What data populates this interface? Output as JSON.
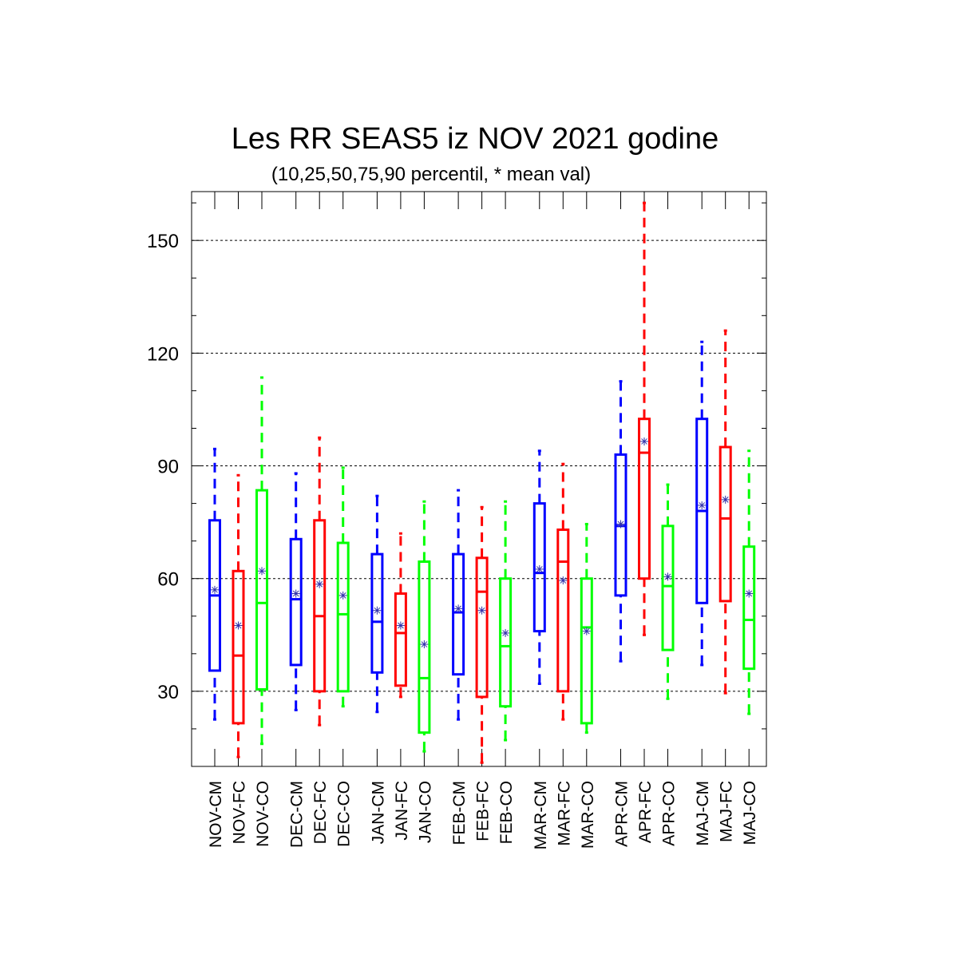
{
  "chart_data": {
    "type": "box",
    "title": "Les RR SEAS5 iz NOV 2021 godine",
    "subtitle": "(10,25,50,75,90 percentil, * mean val)",
    "xlabel": "",
    "ylabel": "",
    "ylim": [
      10,
      163
    ],
    "yticks": [
      30,
      60,
      90,
      120,
      150
    ],
    "grid": "horizontal dashed at major ticks",
    "legend": "none",
    "colors": {
      "CM": "#0000ff",
      "FC": "#ff0000",
      "CO": "#00ff00"
    },
    "boxes": [
      {
        "label": "NOV-CM",
        "group": 0,
        "kind": "CM",
        "p10": 22.5,
        "p25": 35.5,
        "median": 55.5,
        "p75": 75.5,
        "p90": 94.5,
        "mean": 57
      },
      {
        "label": "NOV-FC",
        "group": 0,
        "kind": "FC",
        "p10": 12.5,
        "p25": 21.5,
        "median": 39.5,
        "p75": 62,
        "p90": 87.5,
        "mean": 47.5
      },
      {
        "label": "NOV-CO",
        "group": 0,
        "kind": "CO",
        "p10": 16,
        "p25": 30.5,
        "median": 53.5,
        "p75": 83.5,
        "p90": 113.5,
        "mean": 62
      },
      {
        "label": "DEC-CM",
        "group": 1,
        "kind": "CM",
        "p10": 25,
        "p25": 37,
        "median": 54.5,
        "p75": 70.5,
        "p90": 88,
        "mean": 56
      },
      {
        "label": "DEC-FC",
        "group": 1,
        "kind": "FC",
        "p10": 21,
        "p25": 30,
        "median": 50,
        "p75": 75.5,
        "p90": 97.5,
        "mean": 58.5
      },
      {
        "label": "DEC-CO",
        "group": 1,
        "kind": "CO",
        "p10": 26,
        "p25": 30,
        "median": 50.5,
        "p75": 69.5,
        "p90": 89.5,
        "mean": 55.5
      },
      {
        "label": "JAN-CM",
        "group": 2,
        "kind": "CM",
        "p10": 24.5,
        "p25": 35,
        "median": 48.5,
        "p75": 66.5,
        "p90": 82,
        "mean": 51.5
      },
      {
        "label": "JAN-FC",
        "group": 2,
        "kind": "FC",
        "p10": 28.5,
        "p25": 31.5,
        "median": 45.5,
        "p75": 56,
        "p90": 72,
        "mean": 47.5
      },
      {
        "label": "JAN-CO",
        "group": 2,
        "kind": "CO",
        "p10": 14,
        "p25": 19,
        "median": 33.5,
        "p75": 64.5,
        "p90": 80.5,
        "mean": 42.5
      },
      {
        "label": "FEB-CM",
        "group": 3,
        "kind": "CM",
        "p10": 22.5,
        "p25": 34.5,
        "median": 51,
        "p75": 66.5,
        "p90": 83.5,
        "mean": 52
      },
      {
        "label": "FEB-FC",
        "group": 3,
        "kind": "FC",
        "p10": 11,
        "p25": 28.5,
        "median": 56.5,
        "p75": 65.5,
        "p90": 79,
        "mean": 51.5
      },
      {
        "label": "FEB-CO",
        "group": 3,
        "kind": "CO",
        "p10": 17,
        "p25": 26,
        "median": 42,
        "p75": 60,
        "p90": 80.5,
        "mean": 45.5
      },
      {
        "label": "MAR-CM",
        "group": 4,
        "kind": "CM",
        "p10": 32,
        "p25": 46,
        "median": 61.5,
        "p75": 80,
        "p90": 94,
        "mean": 62.5
      },
      {
        "label": "MAR-FC",
        "group": 4,
        "kind": "FC",
        "p10": 22.5,
        "p25": 30,
        "median": 64.5,
        "p75": 73,
        "p90": 90.5,
        "mean": 59.5
      },
      {
        "label": "MAR-CO",
        "group": 4,
        "kind": "CO",
        "p10": 19,
        "p25": 21.5,
        "median": 47,
        "p75": 60,
        "p90": 74.5,
        "mean": 46
      },
      {
        "label": "APR-CM",
        "group": 5,
        "kind": "CM",
        "p10": 38,
        "p25": 55.5,
        "median": 74,
        "p75": 93,
        "p90": 112.5,
        "mean": 74.5
      },
      {
        "label": "APR-FC",
        "group": 5,
        "kind": "FC",
        "p10": 45,
        "p25": 60,
        "median": 93.5,
        "p75": 102.5,
        "p90": 160,
        "mean": 96.5
      },
      {
        "label": "APR-CO",
        "group": 5,
        "kind": "CO",
        "p10": 28,
        "p25": 41,
        "median": 58,
        "p75": 74,
        "p90": 85,
        "mean": 60.5
      },
      {
        "label": "MAJ-CM",
        "group": 6,
        "kind": "CM",
        "p10": 37,
        "p25": 53.5,
        "median": 78,
        "p75": 102.5,
        "p90": 123,
        "mean": 79.5
      },
      {
        "label": "MAJ-FC",
        "group": 6,
        "kind": "FC",
        "p10": 29.5,
        "p25": 54,
        "median": 76,
        "p75": 95,
        "p90": 126,
        "mean": 81
      },
      {
        "label": "MAJ-CO",
        "group": 6,
        "kind": "CO",
        "p10": 24,
        "p25": 36,
        "median": 49,
        "p75": 68.5,
        "p90": 94,
        "mean": 56
      }
    ]
  }
}
